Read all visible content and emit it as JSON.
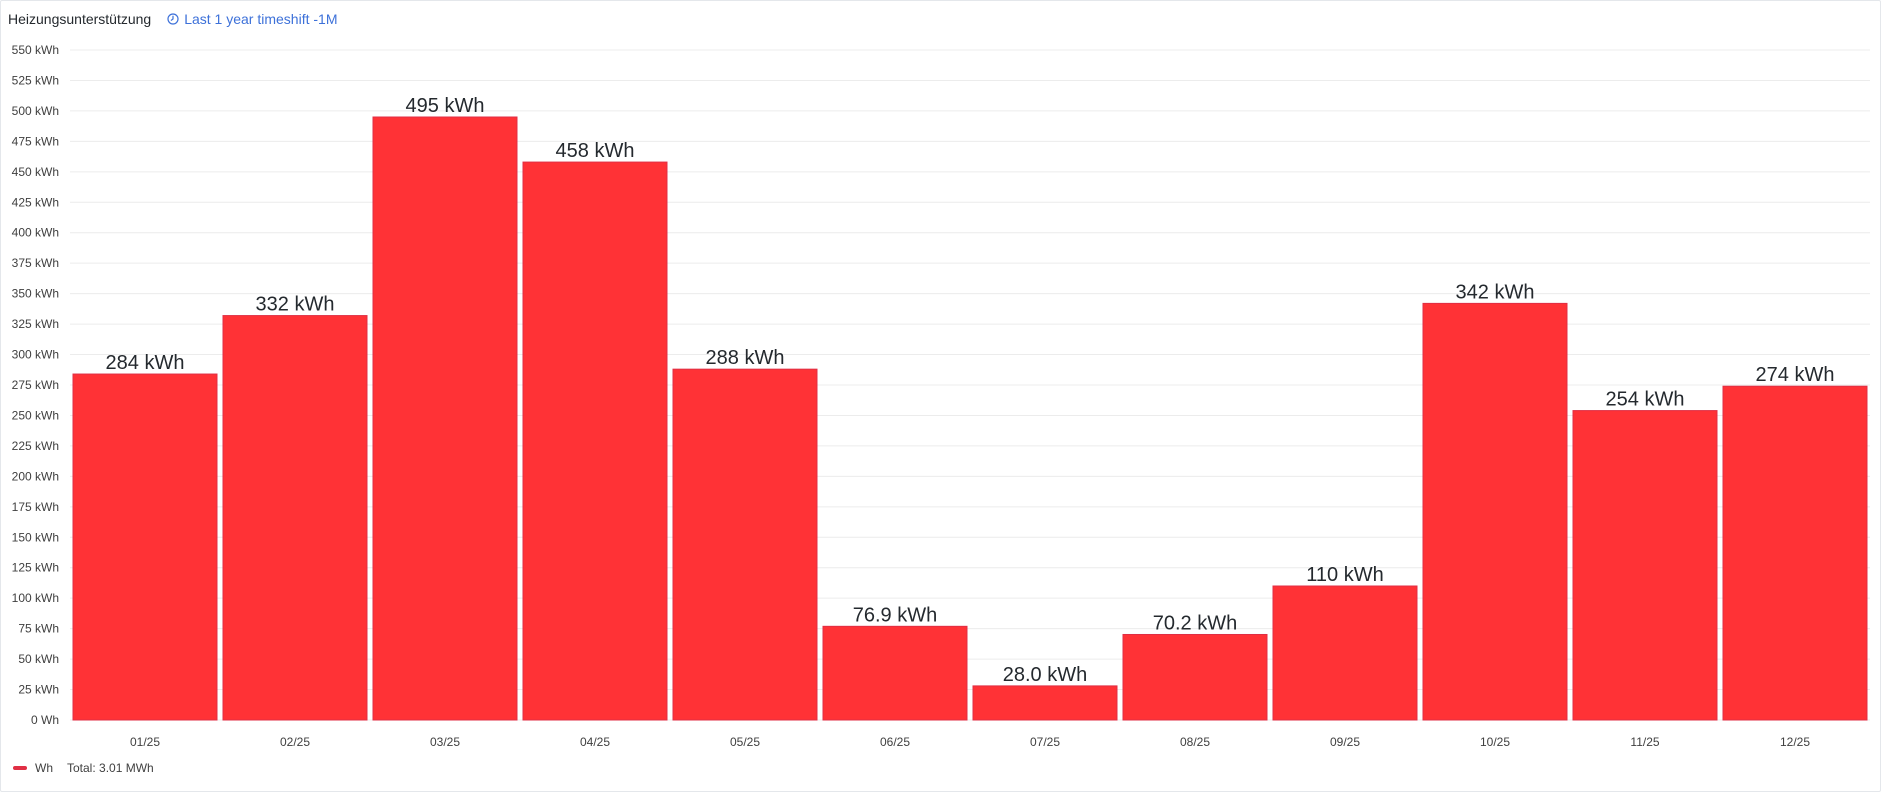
{
  "panel": {
    "title": "Heizungsunterstützung",
    "timeshift_label": "Last 1 year timeshift -1M"
  },
  "legend": {
    "series_name": "Wh",
    "total_label": "Total: 3.01 MWh"
  },
  "colors": {
    "bar_fill": "#ff3236",
    "bar_stroke": "#e02f44",
    "grid": "#ececec",
    "accent": "#3d71d9"
  },
  "chart_data": {
    "type": "bar",
    "categories": [
      "01/25",
      "02/25",
      "03/25",
      "04/25",
      "05/25",
      "06/25",
      "07/25",
      "08/25",
      "09/25",
      "10/25",
      "11/25",
      "12/25"
    ],
    "series": [
      {
        "name": "Wh",
        "values": [
          284,
          332,
          495,
          458,
          288,
          76.9,
          28.0,
          70.2,
          110,
          342,
          254,
          274
        ]
      }
    ],
    "value_labels": [
      "284 kWh",
      "332 kWh",
      "495 kWh",
      "458 kWh",
      "288 kWh",
      "76.9 kWh",
      "28.0 kWh",
      "70.2 kWh",
      "110 kWh",
      "342 kWh",
      "254 kWh",
      "274 kWh"
    ],
    "unit": "kWh",
    "ylim": [
      0,
      550
    ],
    "yticks": [
      0,
      25,
      50,
      75,
      100,
      125,
      150,
      175,
      200,
      225,
      250,
      275,
      300,
      325,
      350,
      375,
      400,
      425,
      450,
      475,
      500,
      525,
      550
    ],
    "ytick_labels": [
      "0 Wh",
      "25 kWh",
      "50 kWh",
      "75 kWh",
      "100 kWh",
      "125 kWh",
      "150 kWh",
      "175 kWh",
      "200 kWh",
      "225 kWh",
      "250 kWh",
      "275 kWh",
      "300 kWh",
      "325 kWh",
      "350 kWh",
      "375 kWh",
      "400 kWh",
      "425 kWh",
      "450 kWh",
      "475 kWh",
      "500 kWh",
      "525 kWh",
      "550 kWh"
    ],
    "grid": true,
    "legend_position": "bottom-left"
  }
}
